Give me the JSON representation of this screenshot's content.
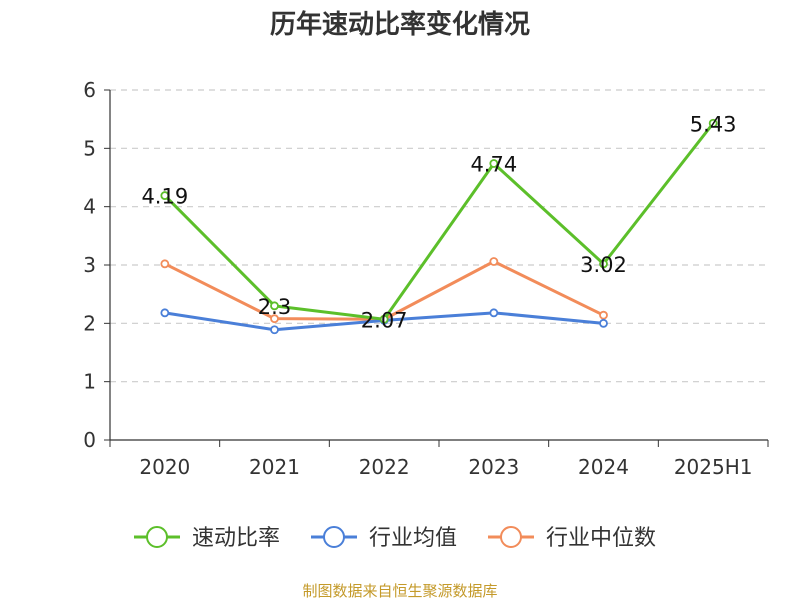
{
  "chart_data": {
    "type": "line",
    "title": "历年速动比率变化情况",
    "categories": [
      "2020",
      "2021",
      "2022",
      "2023",
      "2024",
      "2025H1"
    ],
    "ylim": [
      0,
      6
    ],
    "yticks": [
      "0",
      "1",
      "2",
      "3",
      "4",
      "5",
      "6"
    ],
    "grid": true,
    "legend_position": "bottom",
    "series": [
      {
        "name": "速动比率",
        "color": "#5cbf2a",
        "values": [
          4.19,
          2.3,
          2.07,
          4.74,
          3.02,
          5.43
        ],
        "labels": [
          "4.19",
          "2.3",
          "2.07",
          "4.74",
          "3.02",
          "5.43"
        ]
      },
      {
        "name": "行业均值",
        "color": "#4a7fd8",
        "values": [
          2.18,
          1.89,
          2.05,
          2.18,
          2.0,
          null
        ]
      },
      {
        "name": "行业中位数",
        "color": "#f28c5a",
        "values": [
          3.02,
          2.08,
          2.07,
          3.06,
          2.14,
          null
        ]
      }
    ]
  },
  "source": "制图数据来自恒生聚源数据库"
}
